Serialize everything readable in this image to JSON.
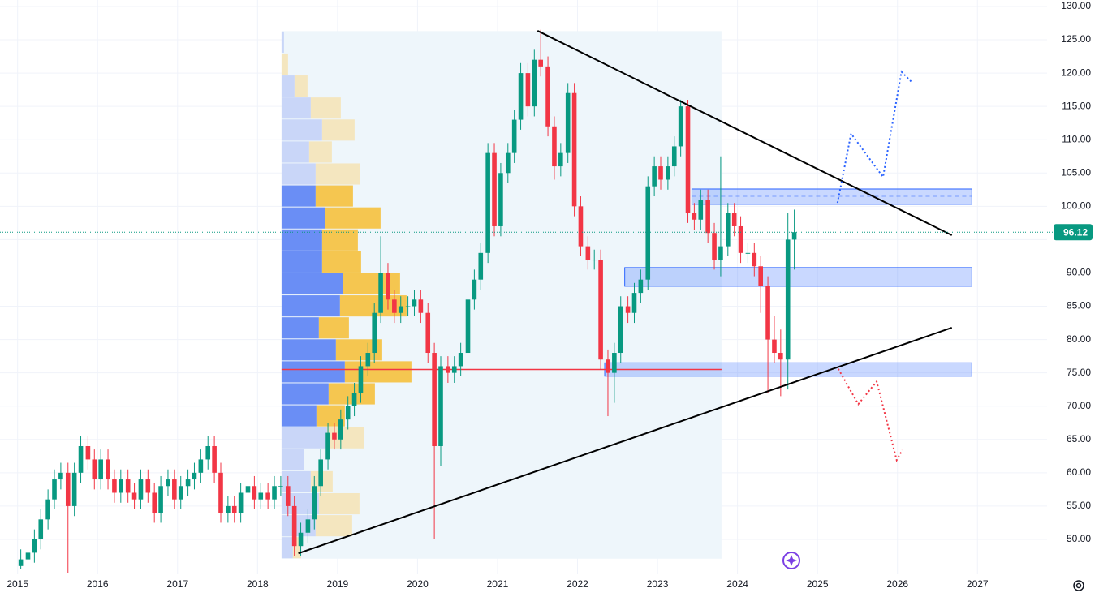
{
  "chart_data": {
    "type": "candlestick",
    "up_color": "#089981",
    "down_color": "#f23645",
    "xlim": [
      2014.78,
      2027.87
    ],
    "ylim": [
      44.76,
      130.97
    ],
    "xticks": [
      2015,
      2016,
      2017,
      2018,
      2019,
      2020,
      2021,
      2022,
      2023,
      2024,
      2025,
      2026,
      2027
    ],
    "yticks": [
      {
        "value": 50,
        "label": "50.00"
      },
      {
        "value": 55,
        "label": "55.00"
      },
      {
        "value": 60,
        "label": "60.00"
      },
      {
        "value": 65,
        "label": "65.00"
      },
      {
        "value": 70,
        "label": "70.00"
      },
      {
        "value": 75,
        "label": "75.00"
      },
      {
        "value": 80,
        "label": "80.00"
      },
      {
        "value": 85,
        "label": "85.00"
      },
      {
        "value": 90,
        "label": "90.00"
      },
      {
        "value": 95,
        "label": "95.00"
      },
      {
        "value": 100,
        "label": "100.00"
      },
      {
        "value": 105,
        "label": "105.00"
      },
      {
        "value": 110,
        "label": "110.00"
      },
      {
        "value": 115,
        "label": "115.00"
      },
      {
        "value": 120,
        "label": "120.00"
      },
      {
        "value": 125,
        "label": "125.00"
      },
      {
        "value": 130,
        "label": "130.00"
      }
    ],
    "grid": true,
    "x": [
      2015.04,
      2015.13,
      2015.21,
      2015.29,
      2015.38,
      2015.46,
      2015.54,
      2015.63,
      2015.71,
      2015.79,
      2015.88,
      2015.96,
      2016.04,
      2016.13,
      2016.21,
      2016.29,
      2016.38,
      2016.46,
      2016.54,
      2016.63,
      2016.71,
      2016.79,
      2016.88,
      2016.96,
      2017.04,
      2017.13,
      2017.21,
      2017.29,
      2017.38,
      2017.46,
      2017.54,
      2017.63,
      2017.71,
      2017.79,
      2017.88,
      2017.96,
      2018.04,
      2018.13,
      2018.21,
      2018.29,
      2018.38,
      2018.46,
      2018.54,
      2018.63,
      2018.71,
      2018.79,
      2018.88,
      2018.96,
      2019.04,
      2019.13,
      2019.21,
      2019.29,
      2019.38,
      2019.46,
      2019.54,
      2019.63,
      2019.71,
      2019.79,
      2019.88,
      2019.96,
      2020.04,
      2020.13,
      2020.21,
      2020.29,
      2020.38,
      2020.46,
      2020.54,
      2020.63,
      2020.71,
      2020.79,
      2020.88,
      2020.96,
      2021.04,
      2021.13,
      2021.21,
      2021.29,
      2021.38,
      2021.46,
      2021.54,
      2021.63,
      2021.71,
      2021.79,
      2021.88,
      2021.96,
      2022.04,
      2022.13,
      2022.21,
      2022.29,
      2022.38,
      2022.46,
      2022.54,
      2022.63,
      2022.71,
      2022.79,
      2022.88,
      2022.96,
      2023.04,
      2023.13,
      2023.21,
      2023.29,
      2023.38,
      2023.46,
      2023.54,
      2023.63,
      2023.71,
      2023.79,
      2023.88,
      2023.96,
      2024.04,
      2024.13,
      2024.21,
      2024.29,
      2024.38,
      2024.46,
      2024.54,
      2024.63,
      2024.71
    ],
    "open": [
      46,
      47,
      48,
      50,
      53,
      56,
      59,
      60,
      55,
      60,
      64,
      62,
      59,
      62,
      59,
      57,
      59,
      57,
      56,
      59,
      57,
      54,
      58,
      59,
      56,
      58,
      59,
      60,
      62,
      64,
      60,
      54,
      55,
      54,
      57,
      58,
      56,
      57,
      56,
      58,
      58,
      55,
      49,
      51,
      53,
      58,
      62,
      66,
      65,
      68,
      70,
      72,
      76,
      78,
      84,
      90,
      86,
      84,
      85,
      85,
      86,
      84,
      78,
      64,
      76,
      75,
      76,
      78,
      86,
      89,
      93,
      108,
      97,
      105,
      108,
      113,
      120,
      115,
      122,
      121,
      112,
      106,
      108,
      117,
      100,
      94,
      92,
      92,
      77,
      75,
      78,
      85,
      84,
      87,
      89,
      103,
      106,
      104,
      106,
      109,
      115,
      99,
      98,
      101,
      96,
      92,
      94,
      99,
      97,
      93,
      93,
      91,
      88,
      80,
      78,
      77,
      95
    ],
    "high": [
      48.5,
      49.5,
      51.5,
      54.5,
      57.5,
      60.5,
      61.5,
      61.5,
      61.5,
      65.5,
      65.5,
      63.5,
      63.5,
      63.5,
      60.5,
      60.5,
      60.5,
      58.5,
      60.5,
      60.5,
      58.5,
      59.5,
      60.5,
      60.5,
      59.5,
      60.5,
      61.5,
      63.5,
      65.5,
      65.5,
      61.5,
      56.5,
      56.5,
      58.5,
      59.5,
      59.5,
      58.5,
      58.5,
      59.5,
      59.5,
      59.5,
      56.5,
      52.5,
      54.5,
      59.5,
      63.5,
      67.5,
      67.5,
      69.5,
      71.5,
      73.5,
      77.5,
      79.5,
      85.5,
      95.5,
      91.5,
      87.5,
      86.5,
      86.5,
      87.5,
      87.5,
      85.5,
      79.5,
      77.5,
      77.5,
      77.5,
      79.5,
      87.5,
      90.5,
      94.5,
      109.5,
      109.5,
      106.5,
      109.5,
      114.5,
      121.5,
      121.5,
      123.5,
      126.5,
      122.5,
      113.5,
      109.5,
      118.5,
      118.5,
      101.5,
      95.5,
      93.5,
      93.5,
      78.5,
      79.5,
      86.5,
      86.5,
      88.5,
      90.5,
      104.5,
      107.5,
      107.5,
      107.5,
      110.5,
      116,
      116,
      100.5,
      102.5,
      102.5,
      97.5,
      107.5,
      100.5,
      100.5,
      98.5,
      94.5,
      94.5,
      92.5,
      89.5,
      83.5,
      81.5,
      99,
      99.5
    ],
    "low": [
      45.5,
      45.5,
      46.5,
      48.5,
      51.5,
      54.5,
      57.5,
      45,
      53.5,
      58.5,
      60.5,
      57.5,
      57.5,
      57.5,
      55.5,
      55.5,
      55.5,
      54.5,
      54.5,
      55.5,
      52.5,
      52.5,
      56.5,
      54.5,
      54.5,
      56.5,
      57.5,
      58.5,
      60.5,
      58.5,
      52.5,
      52.5,
      52.5,
      52.5,
      55.5,
      54.5,
      54.5,
      54.5,
      54.5,
      56.5,
      53.5,
      47.5,
      47.5,
      49.5,
      51.5,
      56.5,
      60.5,
      63.5,
      63.5,
      66.5,
      68.5,
      70.5,
      74.5,
      76.5,
      82.5,
      84.5,
      82.5,
      82.5,
      83.5,
      83.5,
      82.5,
      76.5,
      50,
      61,
      73.5,
      73.5,
      74.5,
      76.5,
      84.5,
      87.5,
      91.5,
      95.5,
      95.5,
      103.5,
      106.5,
      111.5,
      113.5,
      113.5,
      119.5,
      110.5,
      104,
      104.5,
      106.5,
      98.5,
      92.5,
      90.5,
      90.5,
      75.5,
      68.5,
      70.5,
      76.5,
      82.5,
      82.5,
      85.5,
      87.5,
      101.5,
      102.5,
      102.5,
      104.5,
      107.5,
      97.5,
      96.5,
      96.5,
      94.5,
      90.5,
      89.5,
      92.5,
      95.5,
      91.5,
      91.5,
      89.5,
      84,
      72,
      76.5,
      71.5,
      72.5,
      90.5
    ],
    "close": [
      47,
      48,
      50,
      53,
      56,
      59,
      60,
      55,
      60,
      64,
      62,
      59,
      62,
      59,
      57,
      59,
      57,
      56,
      59,
      57,
      54,
      58,
      59,
      56,
      58,
      59,
      60,
      62,
      64,
      60,
      54,
      55,
      54,
      57,
      58,
      56,
      57,
      56,
      58,
      58,
      55,
      49,
      51,
      53,
      58,
      62,
      66,
      65,
      68,
      70,
      72,
      76,
      78,
      84,
      90,
      86,
      84,
      85,
      85,
      86,
      84,
      78,
      64,
      76,
      75,
      76,
      78,
      86,
      89,
      93,
      108,
      97,
      105,
      108,
      113,
      120,
      115,
      122,
      121,
      112,
      106,
      108,
      117,
      100,
      94,
      92,
      92,
      77,
      75,
      78,
      85,
      84,
      87,
      89,
      103,
      106,
      104,
      106,
      109,
      115,
      99,
      98,
      101,
      96,
      92,
      94,
      99,
      97,
      93,
      93,
      91,
      88,
      80,
      78,
      77,
      95,
      96.12
    ],
    "volume_profile": {
      "range_x": [
        2018.3,
        2023.8
      ],
      "bins": [
        126.3,
        123.0,
        119.7,
        116.4,
        113.1,
        109.8,
        106.5,
        103.2,
        99.9,
        96.6,
        93.3,
        90.0,
        86.7,
        83.4,
        80.1,
        76.8,
        73.5,
        70.2,
        66.9,
        63.6,
        60.3,
        57.0,
        53.7,
        50.4,
        47.1
      ],
      "up": [
        3,
        0,
        16,
        36,
        50,
        34,
        42,
        42,
        54,
        50,
        50,
        76,
        72,
        46,
        67,
        78,
        58,
        43,
        56,
        28,
        36,
        46,
        42,
        14
      ],
      "down": [
        0,
        8,
        16,
        37,
        40,
        28,
        55,
        46,
        68,
        44,
        48,
        70,
        82,
        37,
        57,
        82,
        57,
        35,
        46,
        0,
        27,
        50,
        45,
        10
      ],
      "value_area": [
        66.9,
        103.2
      ],
      "poc": 75.5,
      "colors": [
        "#6a8ef5",
        "#f5c650"
      ],
      "light_colors": [
        "#c9d6f8",
        "#f4e6bf"
      ],
      "poc_color": "#f23645",
      "background": "#eef6fb"
    },
    "boxes": [
      {
        "x": [
          2023.43,
          2026.93
        ],
        "y": [
          100.3,
          102.6
        ],
        "mid": 101.5
      },
      {
        "x": [
          2022.59,
          2026.93
        ],
        "y": [
          88.0,
          90.8
        ]
      },
      {
        "x": [
          2022.34,
          2026.93
        ],
        "y": [
          74.5,
          76.5
        ]
      }
    ],
    "box_color": "#2962ff",
    "trendlines": [
      {
        "x": [
          2021.5,
          2026.68
        ],
        "y": [
          126.35,
          95.66
        ]
      },
      {
        "x": [
          2018.51,
          2026.68
        ],
        "y": [
          47.9,
          81.78
        ]
      }
    ],
    "projections": [
      {
        "color": "#2962ff",
        "x": [
          2025.25,
          2025.42,
          2025.82,
          2026.05,
          2026.19
        ],
        "y": [
          100.5,
          110.9,
          104.4,
          120.2,
          118.5
        ]
      },
      {
        "color": "#f23645",
        "x": [
          2025.26,
          2025.51,
          2025.74,
          2025.99,
          2026.06
        ],
        "y": [
          75.6,
          70.3,
          73.7,
          61.9,
          63.4
        ]
      }
    ]
  }
}
